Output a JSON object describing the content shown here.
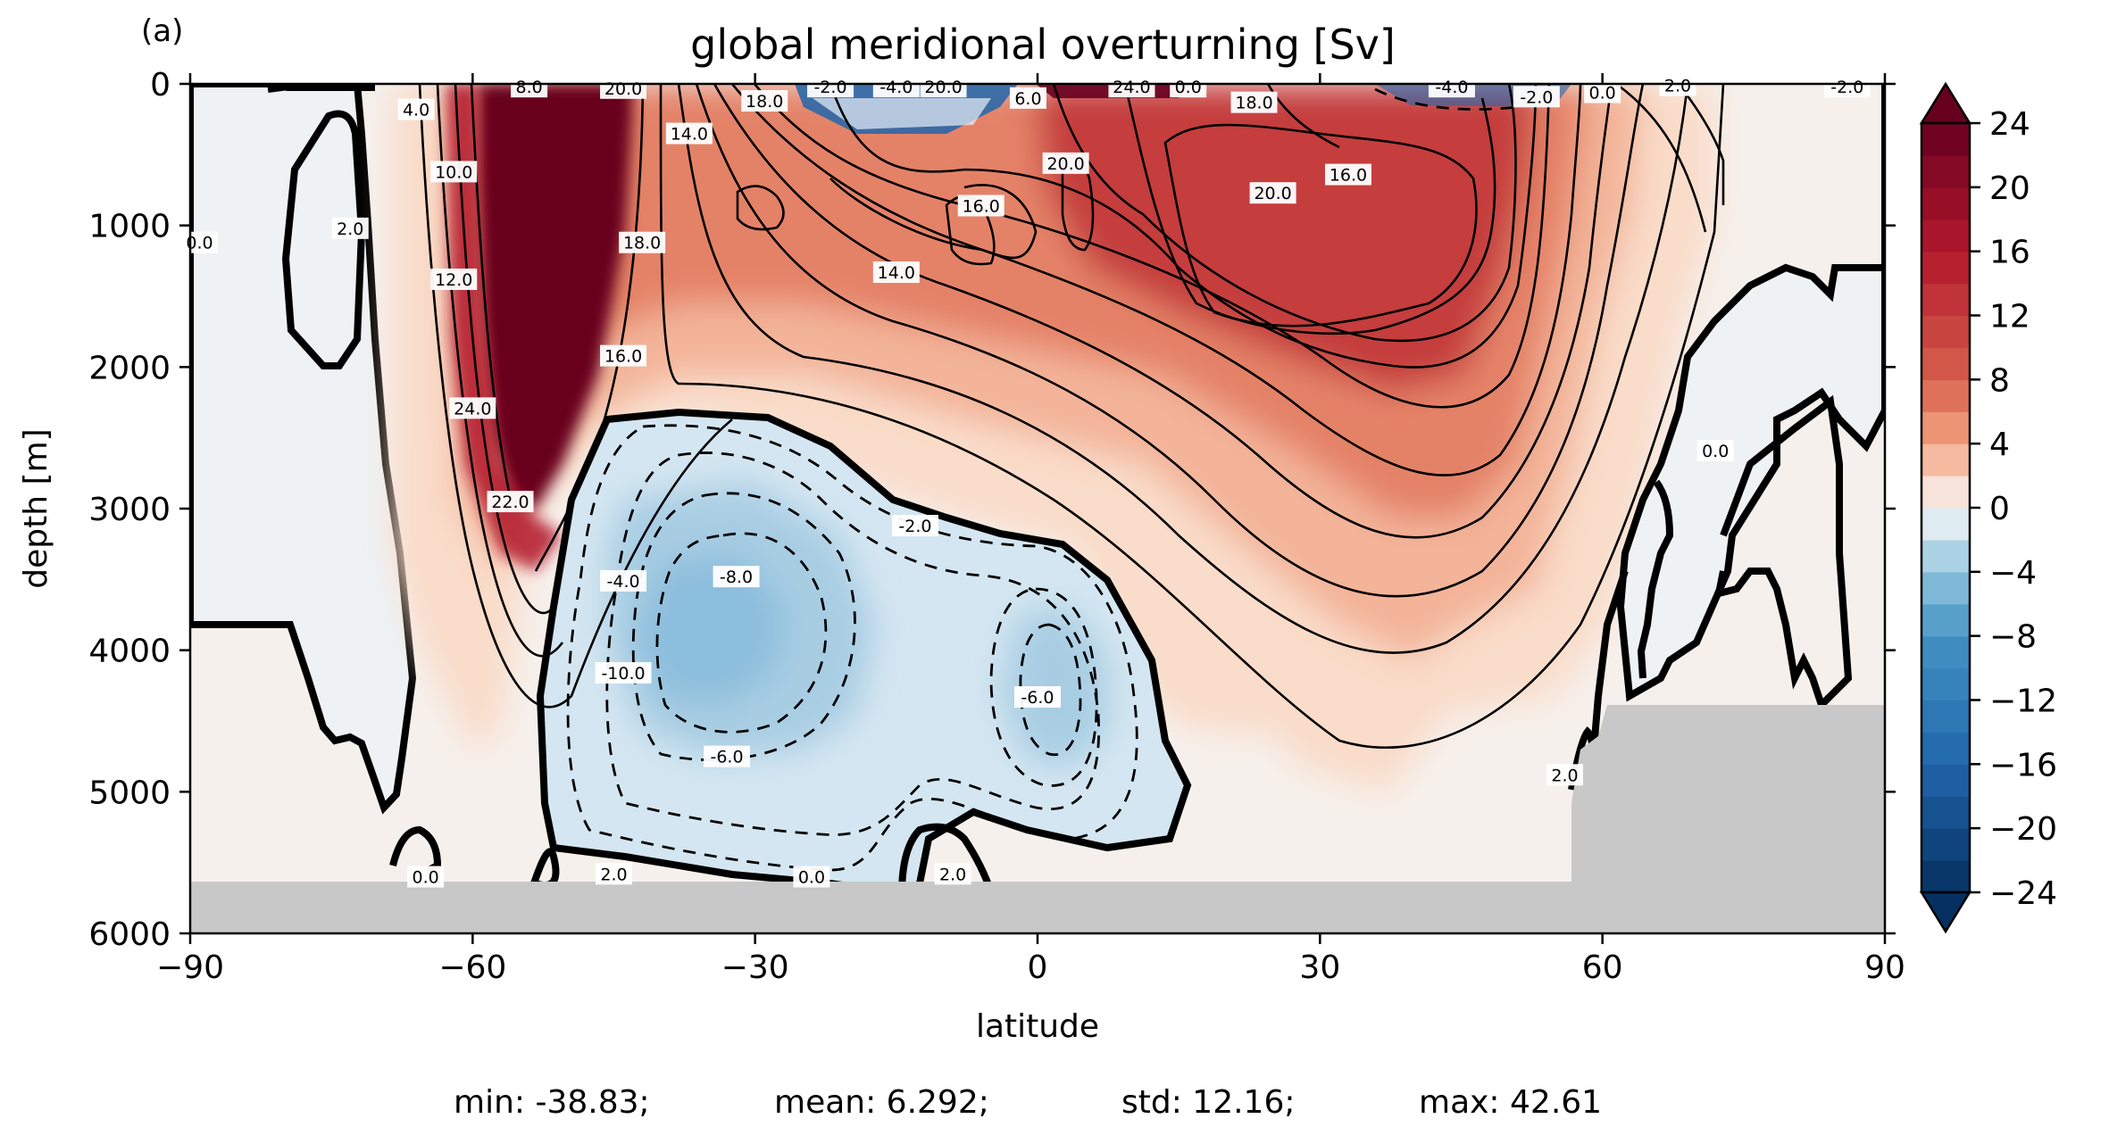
{
  "panel_label": "(a)",
  "stats": {
    "min": "min: -38.83;",
    "mean": "mean: 6.292;",
    "std": "std: 12.16;",
    "max": "max: 42.61"
  },
  "chart_data": {
    "type": "contour",
    "title": "global meridional overturning [Sv]",
    "xlabel": "latitude",
    "ylabel": "depth [m]",
    "xlim": [
      -90,
      90
    ],
    "ylim": [
      6000,
      0
    ],
    "x_ticks": [
      -90,
      -60,
      -30,
      0,
      30,
      60,
      90
    ],
    "x_tick_labels": [
      "−90",
      "−60",
      "−30",
      "0",
      "30",
      "60",
      "90"
    ],
    "y_ticks": [
      0,
      1000,
      2000,
      3000,
      4000,
      5000,
      6000
    ],
    "y_tick_labels": [
      "0",
      "1000",
      "2000",
      "3000",
      "4000",
      "5000",
      "6000"
    ],
    "colormap": "RdBu_r",
    "colorbar": {
      "range": [
        -24,
        24
      ],
      "step": 2,
      "extend": "both",
      "ticks": [
        -24,
        -20,
        -16,
        -12,
        -8,
        -4,
        0,
        4,
        8,
        12,
        16,
        20,
        24
      ],
      "tick_labels": [
        "−24",
        "−20",
        "−16",
        "−12",
        "−8",
        "−4",
        "0",
        "4",
        "8",
        "12",
        "16",
        "20",
        "24"
      ]
    },
    "contour_interval": 2.0,
    "features": {
      "upper_cell_max_sv": 24,
      "lower_cell_min_sv": -10,
      "sea_floor_color": "#c8c8c8"
    },
    "contour_labels": [
      {
        "text": "8.0",
        "lat": -54,
        "depth": 20
      },
      {
        "text": "20.0",
        "lat": -44,
        "depth": 30
      },
      {
        "text": "14.0",
        "lat": -37,
        "depth": 350
      },
      {
        "text": "-2.0",
        "lat": -22,
        "depth": 20
      },
      {
        "text": "-4.0",
        "lat": -15,
        "depth": 20
      },
      {
        "text": "20.0",
        "lat": -10,
        "depth": 20
      },
      {
        "text": "18.0",
        "lat": -29,
        "depth": 120
      },
      {
        "text": "6.0",
        "lat": -1,
        "depth": 100
      },
      {
        "text": "24.0",
        "lat": 10,
        "depth": 20
      },
      {
        "text": "0.0",
        "lat": 16,
        "depth": 20
      },
      {
        "text": "-4.0",
        "lat": 44,
        "depth": 20
      },
      {
        "text": "-2.0",
        "lat": 53,
        "depth": 90
      },
      {
        "text": "0.0",
        "lat": 60,
        "depth": 60
      },
      {
        "text": "2.0",
        "lat": 68,
        "depth": 10
      },
      {
        "text": "-2.0",
        "lat": 86,
        "depth": 20
      },
      {
        "text": "18.0",
        "lat": 23,
        "depth": 130
      },
      {
        "text": "20.0",
        "lat": 3,
        "depth": 560
      },
      {
        "text": "16.0",
        "lat": -6,
        "depth": 860
      },
      {
        "text": "20.0",
        "lat": 25,
        "depth": 770
      },
      {
        "text": "16.0",
        "lat": 33,
        "depth": 640
      },
      {
        "text": "14.0",
        "lat": -15,
        "depth": 1330
      },
      {
        "text": "4.0",
        "lat": -66,
        "depth": 180
      },
      {
        "text": "10.0",
        "lat": -62,
        "depth": 620
      },
      {
        "text": "12.0",
        "lat": -62,
        "depth": 1380
      },
      {
        "text": "18.0",
        "lat": -42,
        "depth": 1120
      },
      {
        "text": "16.0",
        "lat": -44,
        "depth": 1920
      },
      {
        "text": "24.0",
        "lat": -60,
        "depth": 2290
      },
      {
        "text": "22.0",
        "lat": -56,
        "depth": 2950
      },
      {
        "text": "2.0",
        "lat": -73,
        "depth": 1020
      },
      {
        "text": "0.0",
        "lat": -89,
        "depth": 1120
      },
      {
        "text": "-2.0",
        "lat": -13,
        "depth": 3120
      },
      {
        "text": "-8.0",
        "lat": -32,
        "depth": 3480
      },
      {
        "text": "-4.0",
        "lat": -44,
        "depth": 3510
      },
      {
        "text": "-10.0",
        "lat": -44,
        "depth": 4160
      },
      {
        "text": "-6.0",
        "lat": 0,
        "depth": 4330
      },
      {
        "text": "-6.0",
        "lat": -33,
        "depth": 4750
      },
      {
        "text": "0.0",
        "lat": 72,
        "depth": 2590
      },
      {
        "text": "2.0",
        "lat": 56,
        "depth": 4880
      },
      {
        "text": "0.0",
        "lat": -65,
        "depth": 5600
      },
      {
        "text": "2.0",
        "lat": -45,
        "depth": 5580
      },
      {
        "text": "0.0",
        "lat": -24,
        "depth": 5600
      },
      {
        "text": "2.0",
        "lat": -9,
        "depth": 5580
      }
    ]
  }
}
